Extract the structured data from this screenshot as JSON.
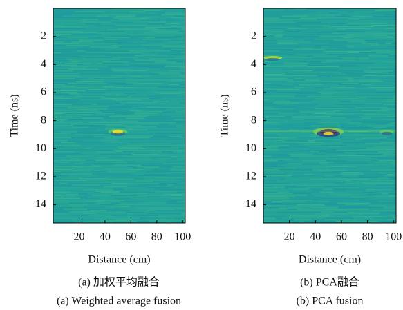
{
  "chart_data": [
    {
      "type": "image",
      "xlabel": "Distance (cm)",
      "ylabel": "Time (ns)",
      "xlim": [
        0,
        102
      ],
      "xticks": [
        20,
        40,
        60,
        80,
        100
      ],
      "ylim": [
        0,
        15.3
      ],
      "y_inverted": true,
      "yticks": [
        2,
        4,
        6,
        8,
        10,
        12,
        14
      ],
      "caption_cn": "(a) 加权平均融合",
      "caption_en": "(a) Weighted average fusion"
    },
    {
      "type": "image",
      "xlabel": "Distance (cm)",
      "ylabel": "Time (ns)",
      "xlim": [
        0,
        102
      ],
      "xticks": [
        20,
        40,
        60,
        80,
        100
      ],
      "ylim": [
        0,
        15.3
      ],
      "y_inverted": true,
      "yticks": [
        2,
        4,
        6,
        8,
        10,
        12,
        14
      ],
      "caption_cn": "(b) PCA融合",
      "caption_en": "(b) PCA fusion"
    }
  ]
}
